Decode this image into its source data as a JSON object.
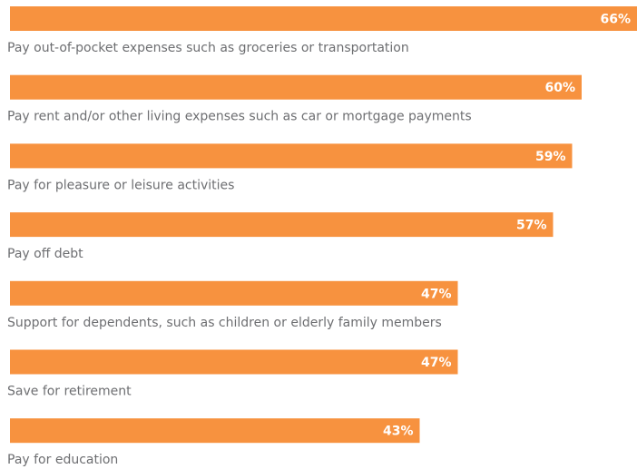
{
  "chart_data": {
    "type": "bar",
    "orientation": "horizontal",
    "categories": [
      "Pay out-of-pocket expenses such as groceries or transportation",
      "Pay rent and/or other living expenses such as car or mortgage payments",
      "Pay for pleasure or leisure activities",
      "Pay off debt",
      "Support for dependents, such as children or elderly family members",
      "Save for retirement",
      "Pay for education"
    ],
    "values": [
      66,
      60,
      59,
      57,
      47,
      47,
      43
    ],
    "value_labels": [
      "66%",
      "60%",
      "59%",
      "57%",
      "47%",
      "47%",
      "43%"
    ],
    "color": "#f7923f"
  }
}
